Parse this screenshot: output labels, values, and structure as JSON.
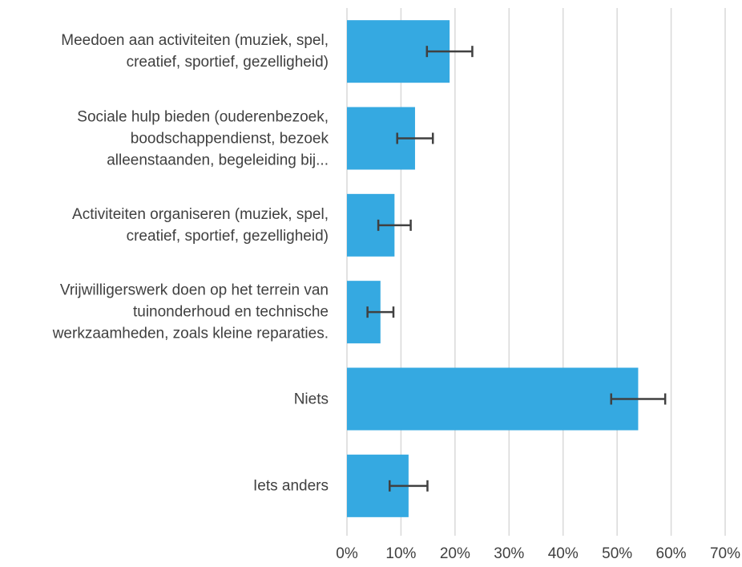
{
  "chart_data": {
    "type": "bar",
    "orientation": "horizontal",
    "categories": [
      "Meedoen aan activiteiten (muziek, spel,\ncreatief, sportief, gezelligheid)",
      "Sociale hulp bieden (ouderenbezoek,\nboodschappendienst, bezoek\nalleenstaanden, begeleiding bij...",
      "Activiteiten organiseren (muziek, spel,\ncreatief, sportief, gezelligheid)",
      "Vrijwilligerswerk doen op het terrein van\ntuinonderhoud en technische\nwerkzaamheden, zoals kleine reparaties.",
      "Niets",
      "Iets anders"
    ],
    "values": [
      19.0,
      12.6,
      8.8,
      6.2,
      53.9,
      11.4
    ],
    "errors": [
      4.2,
      3.3,
      3.0,
      2.4,
      5.0,
      3.5
    ],
    "color": "#35a9e1",
    "error_color": "#404040",
    "xlim": [
      0,
      70
    ],
    "xticks": [
      {
        "value": 0,
        "label": "0%"
      },
      {
        "value": 10,
        "label": "10%"
      },
      {
        "value": 20,
        "label": "20%"
      },
      {
        "value": 30,
        "label": "30%"
      },
      {
        "value": 40,
        "label": "40%"
      },
      {
        "value": 50,
        "label": "50%"
      },
      {
        "value": 60,
        "label": "60%"
      },
      {
        "value": 70,
        "label": "70%"
      }
    ],
    "grid": true
  }
}
